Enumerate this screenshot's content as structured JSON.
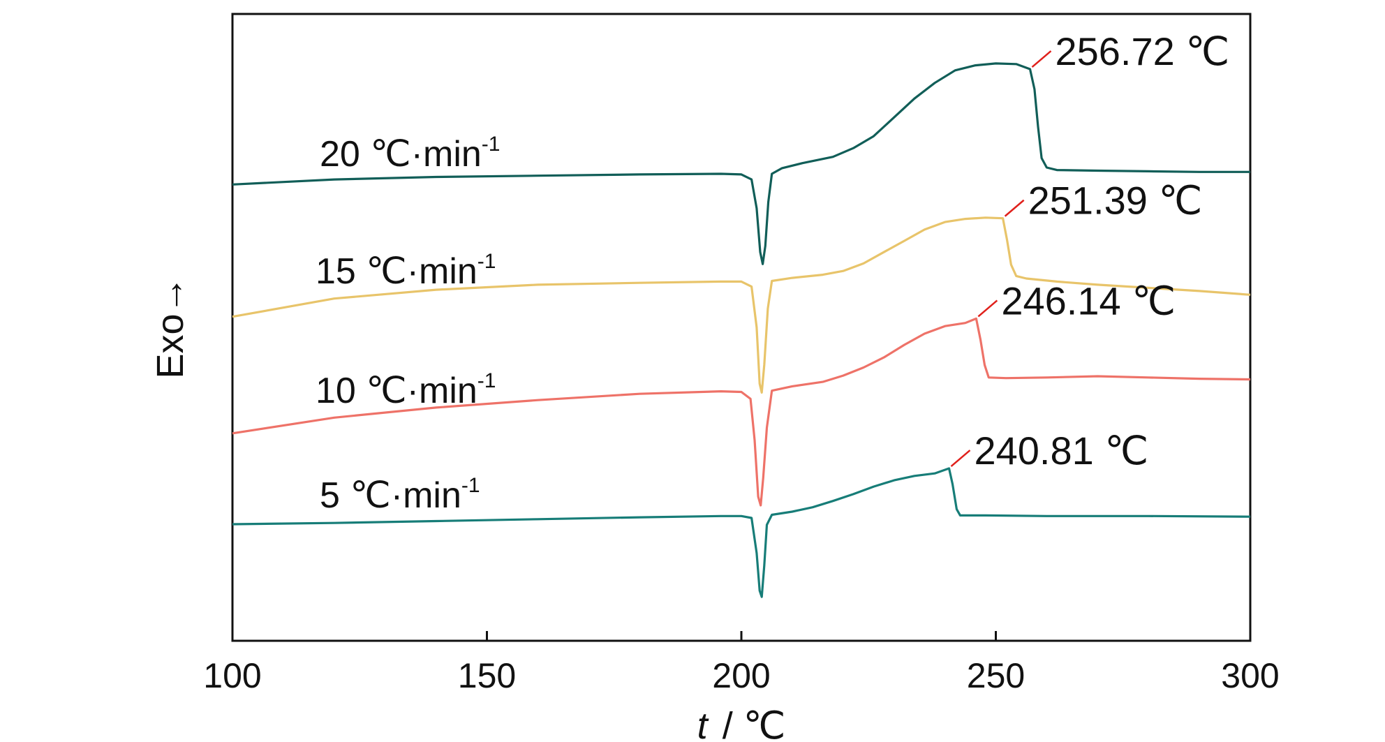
{
  "chart_data": {
    "type": "line",
    "xlabel_var": "t",
    "xlabel_unit": "/ ℃",
    "ylabel": "Exo→",
    "xlim": [
      100,
      300
    ],
    "ylim": [
      0,
      100
    ],
    "x_ticks": [
      100,
      150,
      200,
      250,
      300
    ],
    "x_tick_labels": [
      "100",
      "150",
      "200",
      "250",
      "300"
    ],
    "grid": false,
    "series": [
      {
        "name": "20 ℃·min",
        "name_main": "20  ℃·min",
        "name_sup": "-1",
        "color": "#115e58",
        "peak_label": "256.72 ℃",
        "peak": [
          256.72,
          91.2
        ],
        "points": [
          [
            100,
            72.8
          ],
          [
            120,
            73.6
          ],
          [
            140,
            74.0
          ],
          [
            160,
            74.2
          ],
          [
            180,
            74.4
          ],
          [
            196,
            74.5
          ],
          [
            200,
            74.4
          ],
          [
            202,
            73.6
          ],
          [
            203,
            69
          ],
          [
            203.7,
            62
          ],
          [
            204.2,
            60.1
          ],
          [
            204.7,
            63
          ],
          [
            205.3,
            70
          ],
          [
            206,
            74.5
          ],
          [
            208,
            75.4
          ],
          [
            212,
            76.2
          ],
          [
            218,
            77.2
          ],
          [
            222,
            78.6
          ],
          [
            226,
            80.5
          ],
          [
            230,
            83.5
          ],
          [
            234,
            86.5
          ],
          [
            238,
            89
          ],
          [
            242,
            91
          ],
          [
            246,
            91.8
          ],
          [
            250,
            92.1
          ],
          [
            254,
            92.0
          ],
          [
            256.72,
            91.2
          ],
          [
            257.6,
            88
          ],
          [
            258.3,
            82
          ],
          [
            259,
            77
          ],
          [
            260,
            75.5
          ],
          [
            262,
            75.1
          ],
          [
            270,
            75.0
          ],
          [
            280,
            74.9
          ],
          [
            290,
            74.8
          ],
          [
            300,
            74.8
          ]
        ]
      },
      {
        "name": "15 ℃·min",
        "name_main": "15  ℃·min",
        "name_sup": "-1",
        "color": "#e8c46a",
        "peak_label": "251.39 ℃",
        "peak": [
          251.39,
          67.4
        ],
        "points": [
          [
            100,
            51.7
          ],
          [
            120,
            54.6
          ],
          [
            140,
            56.0
          ],
          [
            160,
            56.8
          ],
          [
            180,
            57.1
          ],
          [
            196,
            57.3
          ],
          [
            200,
            57.3
          ],
          [
            202,
            56.5
          ],
          [
            203,
            50
          ],
          [
            203.6,
            41
          ],
          [
            204,
            39.6
          ],
          [
            204.5,
            44
          ],
          [
            205.2,
            53
          ],
          [
            206,
            57.4
          ],
          [
            210,
            57.9
          ],
          [
            216,
            58.4
          ],
          [
            220,
            59.0
          ],
          [
            224,
            60.2
          ],
          [
            228,
            62.0
          ],
          [
            232,
            63.8
          ],
          [
            236,
            65.6
          ],
          [
            240,
            66.8
          ],
          [
            244,
            67.3
          ],
          [
            248,
            67.5
          ],
          [
            251.39,
            67.4
          ],
          [
            252.2,
            64
          ],
          [
            253,
            60
          ],
          [
            254,
            58.2
          ],
          [
            256,
            57.8
          ],
          [
            262,
            57.3
          ],
          [
            270,
            56.8
          ],
          [
            280,
            56.3
          ],
          [
            290,
            55.8
          ],
          [
            300,
            55.2
          ]
        ]
      },
      {
        "name": "10 ℃·min",
        "name_main": "10  ℃·min",
        "name_sup": "-1",
        "color": "#ee7268",
        "peak_label": "246.14 ℃",
        "peak": [
          246.14,
          51.4
        ],
        "points": [
          [
            100,
            33.1
          ],
          [
            120,
            35.6
          ],
          [
            140,
            37.2
          ],
          [
            160,
            38.4
          ],
          [
            180,
            39.4
          ],
          [
            196,
            39.8
          ],
          [
            200,
            39.7
          ],
          [
            201.8,
            38.6
          ],
          [
            202.6,
            32
          ],
          [
            203.3,
            23
          ],
          [
            203.8,
            21.6
          ],
          [
            204.3,
            26
          ],
          [
            205,
            34
          ],
          [
            206,
            39.9
          ],
          [
            210,
            40.6
          ],
          [
            216,
            41.3
          ],
          [
            220,
            42.3
          ],
          [
            224,
            43.6
          ],
          [
            228,
            45.2
          ],
          [
            232,
            47.2
          ],
          [
            236,
            49.0
          ],
          [
            240,
            50.2
          ],
          [
            244,
            50.7
          ],
          [
            246.14,
            51.4
          ],
          [
            247,
            48
          ],
          [
            247.8,
            44
          ],
          [
            248.6,
            42.0
          ],
          [
            252,
            41.9
          ],
          [
            260,
            42.0
          ],
          [
            270,
            42.2
          ],
          [
            280,
            42.0
          ],
          [
            290,
            41.8
          ],
          [
            300,
            41.7
          ]
        ]
      },
      {
        "name": "5 ℃·min",
        "name_main": "5  ℃·min",
        "name_sup": "-1",
        "color": "#177d78",
        "peak_label": "240.81 ℃",
        "peak": [
          240.81,
          27.5
        ],
        "points": [
          [
            100,
            18.6
          ],
          [
            120,
            18.8
          ],
          [
            140,
            19.1
          ],
          [
            160,
            19.4
          ],
          [
            180,
            19.7
          ],
          [
            196,
            19.9
          ],
          [
            200,
            19.9
          ],
          [
            202,
            19.6
          ],
          [
            203,
            14
          ],
          [
            203.6,
            8
          ],
          [
            204,
            7.0
          ],
          [
            204.5,
            12
          ],
          [
            205,
            18.5
          ],
          [
            206,
            20.1
          ],
          [
            210,
            20.6
          ],
          [
            214,
            21.3
          ],
          [
            218,
            22.3
          ],
          [
            222,
            23.4
          ],
          [
            226,
            24.6
          ],
          [
            230,
            25.6
          ],
          [
            234,
            26.3
          ],
          [
            238,
            26.7
          ],
          [
            240.81,
            27.5
          ],
          [
            241.5,
            25
          ],
          [
            242.3,
            21
          ],
          [
            243,
            20.0
          ],
          [
            248,
            20.0
          ],
          [
            260,
            19.9
          ],
          [
            280,
            19.9
          ],
          [
            300,
            19.8
          ]
        ]
      }
    ]
  }
}
